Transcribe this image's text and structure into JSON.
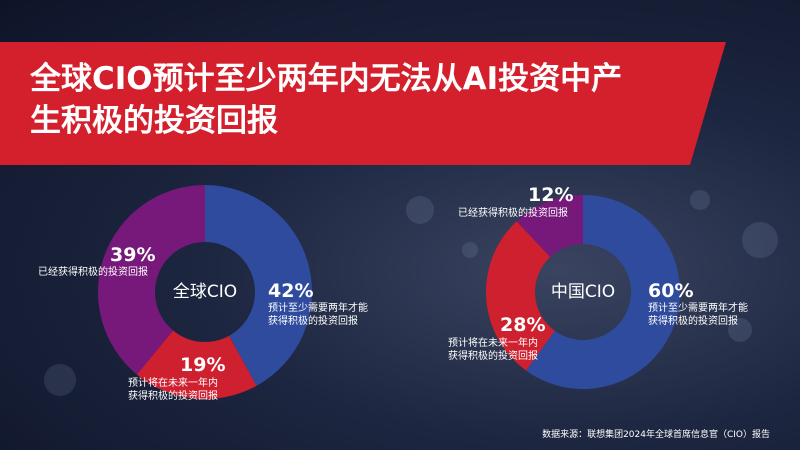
{
  "title": "全球CIO预计至少两年内无法从AI投资中产生积极的投资回报",
  "source": "数据来源：联想集团2024年全球首席信息官（CIO）报告",
  "chart_data": [
    {
      "type": "pie",
      "center_label": "全球CIO",
      "categories": [
        "预计至少需要两年才能获得积极的投资回报",
        "预计将在未来一年内获得积极的投资回报",
        "已经获得积极的投资回报"
      ],
      "values": [
        42,
        19,
        39
      ],
      "value_labels": [
        "42%",
        "19%",
        "39%"
      ],
      "colors": [
        "#2f4b9e",
        "#cf2030",
        "#76197a"
      ]
    },
    {
      "type": "pie",
      "center_label": "中国CIO",
      "categories": [
        "预计至少需要两年才能获得积极的投资回报",
        "预计将在未来一年内获得积极的投资回报",
        "已经获得积极的投资回报"
      ],
      "values": [
        60,
        28,
        12
      ],
      "value_labels": [
        "60%",
        "28%",
        "12%"
      ],
      "colors": [
        "#2f4b9e",
        "#cf2030",
        "#76197a"
      ]
    }
  ]
}
